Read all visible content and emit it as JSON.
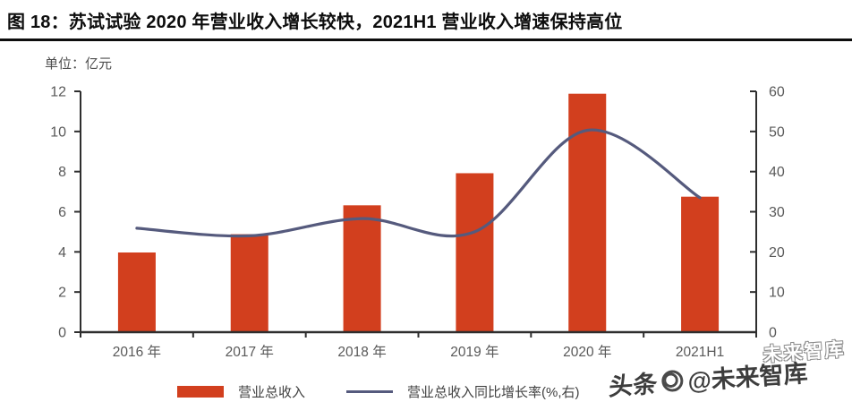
{
  "header": {
    "title": "图 18：苏试试验 2020 年营业收入增长较快，2021H1 营业收入增速保持高位"
  },
  "chart_data": {
    "type": "combo-bar-line",
    "unit_label": "单位：亿元",
    "categories": [
      "2016 年",
      "2017 年",
      "2018 年",
      "2019 年",
      "2020 年",
      "2021H1"
    ],
    "series": [
      {
        "name": "营业总收入",
        "type": "bar",
        "axis": "left",
        "color": "#d23f1e",
        "values": [
          3.97,
          4.88,
          6.32,
          7.92,
          11.88,
          6.75
        ]
      },
      {
        "name": "营业总收入同比增长率(%,右)",
        "type": "line",
        "axis": "right",
        "color": "#555a7d",
        "values": [
          25.9,
          24.0,
          28.3,
          25.0,
          50.3,
          33.5
        ]
      }
    ],
    "left_axis": {
      "min": 0,
      "max": 12,
      "ticks": [
        0,
        2,
        4,
        6,
        8,
        10,
        12
      ]
    },
    "right_axis": {
      "min": 0,
      "max": 60,
      "ticks": [
        0,
        10,
        20,
        30,
        40,
        50,
        60
      ]
    },
    "grid": false,
    "legend_position": "bottom",
    "axis_color": "#2e2e2e",
    "tick_label_color": "#595959"
  },
  "legend": {
    "items": [
      {
        "label": "营业总收入",
        "marker": "bar",
        "color": "#d23f1e"
      },
      {
        "label": "营业总收入同比增长率(%,右)",
        "marker": "line",
        "color": "#555a7d"
      }
    ]
  },
  "watermark": {
    "prefix": "头条",
    "suffix": "@未来智库",
    "ghost": "未来智库"
  }
}
